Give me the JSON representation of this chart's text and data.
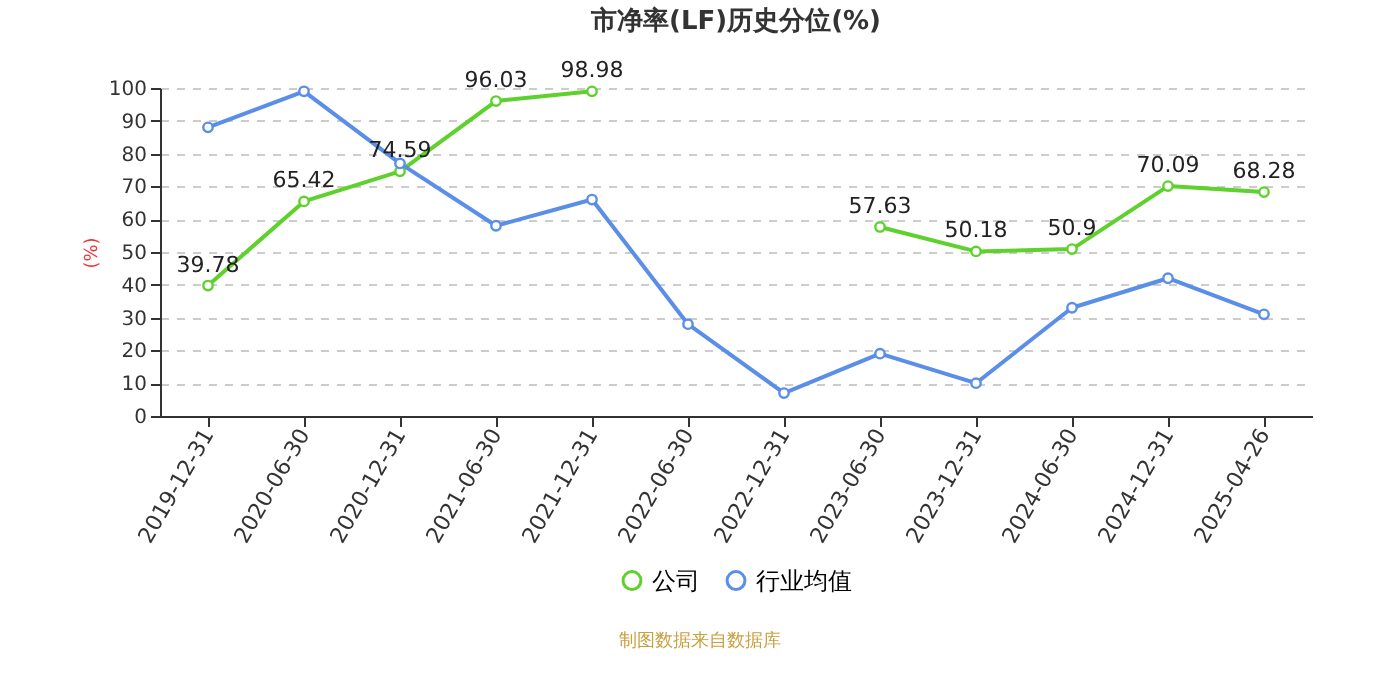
{
  "chart_data": {
    "type": "line",
    "title": "市净率(LF)历史分位(%)",
    "ylabel": "(%)",
    "categories": [
      "2019-12-31",
      "2020-06-30",
      "2020-12-31",
      "2021-06-30",
      "2021-12-31",
      "2022-06-30",
      "2022-12-31",
      "2023-06-30",
      "2023-12-31",
      "2024-06-30",
      "2024-12-31",
      "2025-04-26"
    ],
    "series": [
      {
        "name": "公司",
        "color": "#5fd12c",
        "values": [
          39.78,
          65.42,
          74.59,
          96.03,
          98.98,
          null,
          null,
          57.63,
          50.18,
          50.9,
          70.09,
          68.28
        ],
        "value_labels": [
          "39.78",
          "65.42",
          "74.59",
          "96.03",
          "98.98",
          null,
          null,
          "57.63",
          "50.18",
          "50.9",
          "70.09",
          "68.28"
        ]
      },
      {
        "name": "行业均值",
        "color": "#5a8ee8",
        "values": [
          88,
          99,
          77,
          58,
          66,
          28,
          7,
          19,
          10,
          33,
          42,
          31
        ]
      }
    ],
    "ylim": [
      0,
      100
    ],
    "yticks": [
      0,
      10,
      20,
      30,
      40,
      50,
      60,
      70,
      80,
      90,
      100
    ],
    "grid": "y",
    "legend": "bottom",
    "marker": "circle",
    "line_style": "solid",
    "annotations": [
      "制图数据来自数据库"
    ]
  }
}
